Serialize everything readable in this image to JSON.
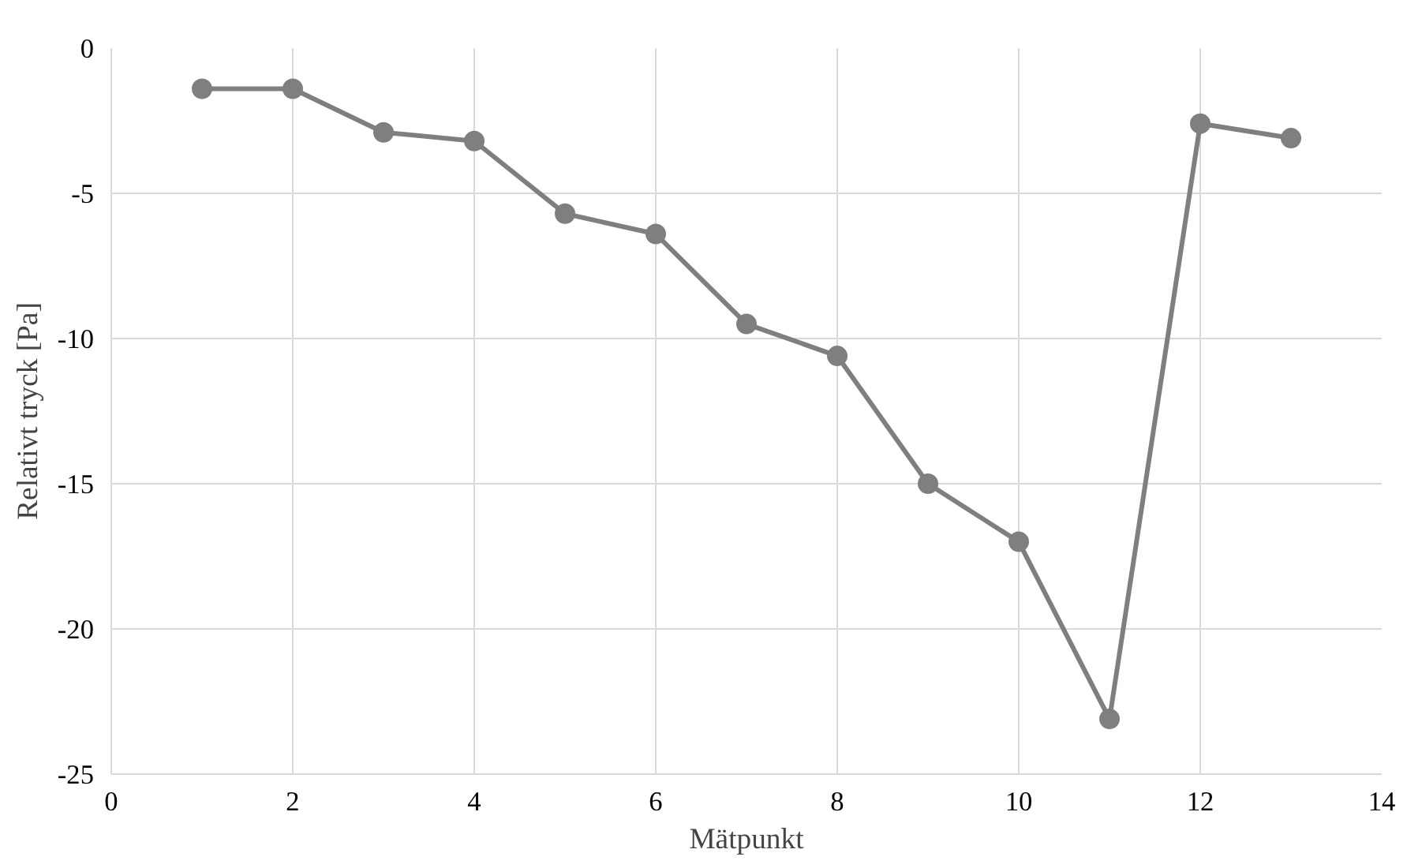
{
  "chart_data": {
    "type": "line",
    "xlabel": "Mätpunkt",
    "ylabel": "Relativt tryck [Pa]",
    "x": [
      1,
      2,
      3,
      4,
      5,
      6,
      7,
      8,
      9,
      10,
      11,
      12,
      13
    ],
    "series": [
      {
        "color": "#7f7f7f",
        "values": [
          -1.4,
          -1.4,
          -2.9,
          -3.2,
          -5.7,
          -6.4,
          -9.5,
          -10.6,
          -15.0,
          -17.0,
          -23.1,
          -2.6,
          -3.1
        ]
      }
    ],
    "xlim": [
      0,
      14
    ],
    "xticks": [
      0,
      2,
      4,
      6,
      8,
      10,
      12,
      14
    ],
    "ylim": [
      -25,
      0
    ],
    "yticks": [
      -25,
      -20,
      -15,
      -10,
      -5,
      0
    ],
    "grid": true,
    "marker": "circle",
    "line_style": "solid"
  }
}
